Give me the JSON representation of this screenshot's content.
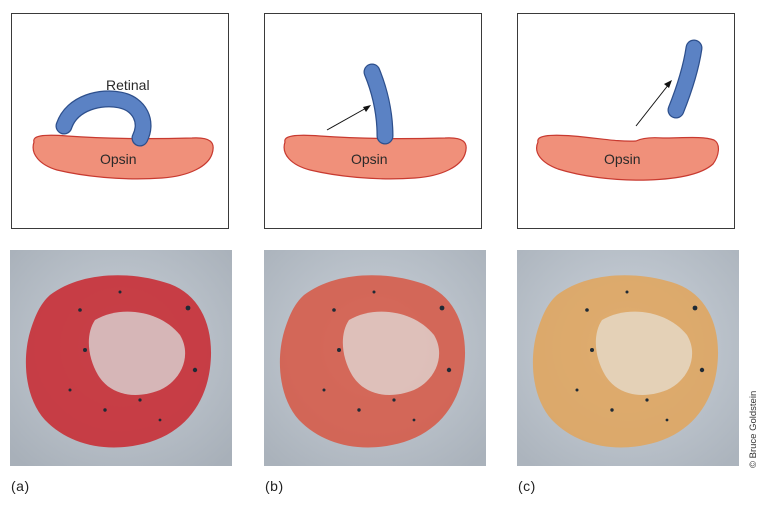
{
  "panels": [
    {
      "caption": "(a)",
      "opsin_label": "Opsin",
      "retinal_label": "Retinal",
      "stage": "bound"
    },
    {
      "caption": "(b)",
      "opsin_label": "Opsin",
      "stage": "isomerized"
    },
    {
      "caption": "(c)",
      "opsin_label": "Opsin",
      "stage": "separated"
    }
  ],
  "credit": "© Bruce Goldstein",
  "colors": {
    "opsin_fill": "#f0907a",
    "opsin_stroke": "#c83a30",
    "retinal_fill": "#5b82c4",
    "retinal_stroke": "#2d4f8c",
    "photo_a": "#c8323a",
    "photo_b": "#d65a48",
    "photo_c": "#e2a55a"
  }
}
